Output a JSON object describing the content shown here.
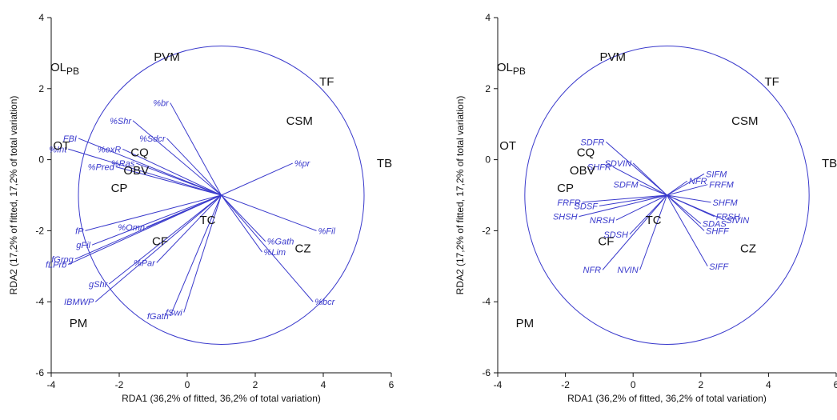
{
  "colors": {
    "vectors": "#3a3acc",
    "sites": "#111111",
    "axes": "#111111"
  },
  "chart_data": [
    {
      "type": "scatter",
      "title": "",
      "xlabel": "RDA1 (36,2% of fitted, 36,2% of total variation)",
      "ylabel": "RDA2 (17,2% of fitted, 17,2% of total variation)",
      "xlim": [
        -4,
        6
      ],
      "ylim": [
        -6,
        4
      ],
      "xticks": [
        "-4",
        "-2",
        "0",
        "2",
        "4",
        "6"
      ],
      "yticks": [
        "-6",
        "-4",
        "-2",
        "0",
        "2",
        "4"
      ],
      "circle": {
        "cx": 1.0,
        "cy": -1.0,
        "r": 4.2
      },
      "vector_origin": [
        1.0,
        -1.0
      ],
      "sites": [
        {
          "label": "OL",
          "sub": "PB",
          "x": -3.6,
          "y": 2.6
        },
        {
          "label": "PVM",
          "x": -0.6,
          "y": 2.9
        },
        {
          "label": "TF",
          "x": 4.1,
          "y": 2.2
        },
        {
          "label": "CSM",
          "x": 3.3,
          "y": 1.1
        },
        {
          "label": "OT",
          "x": -3.7,
          "y": 0.4
        },
        {
          "label": "TB",
          "x": 5.8,
          "y": -0.1
        },
        {
          "label": "CQ",
          "x": -1.4,
          "y": 0.2
        },
        {
          "label": "OBV",
          "x": -1.5,
          "y": -0.3
        },
        {
          "label": "CP",
          "x": -2.0,
          "y": -0.8
        },
        {
          "label": "TC",
          "x": 0.6,
          "y": -1.7
        },
        {
          "label": "CF",
          "x": -0.8,
          "y": -2.3
        },
        {
          "label": "CZ",
          "x": 3.4,
          "y": -2.5
        },
        {
          "label": "PM",
          "x": -3.2,
          "y": -4.6
        }
      ],
      "vectors": [
        {
          "label": "%Shr",
          "x": -1.6,
          "y": 1.1
        },
        {
          "label": "%br",
          "x": -0.5,
          "y": 1.6
        },
        {
          "label": "%Sdcr",
          "x": -0.6,
          "y": 0.6
        },
        {
          "label": "%exR",
          "x": -1.9,
          "y": 0.3
        },
        {
          "label": "FBI",
          "x": -3.2,
          "y": 0.6
        },
        {
          "label": "%Int",
          "x": -3.5,
          "y": 0.3
        },
        {
          "label": "%Ras",
          "x": -1.5,
          "y": -0.1
        },
        {
          "label": "%Pred",
          "x": -2.1,
          "y": -0.2
        },
        {
          "label": "%pr",
          "x": 3.1,
          "y": -0.1
        },
        {
          "label": "fP",
          "x": -3.0,
          "y": -2.0
        },
        {
          "label": "%Omn",
          "x": -1.2,
          "y": -1.9
        },
        {
          "label": "%Fil",
          "x": 3.8,
          "y": -2.0
        },
        {
          "label": "gFil",
          "x": -2.8,
          "y": -2.4
        },
        {
          "label": "%Gath",
          "x": 2.3,
          "y": -2.3
        },
        {
          "label": "%Lim",
          "x": 2.2,
          "y": -2.6
        },
        {
          "label": "fGrpg",
          "x": -3.3,
          "y": -2.8
        },
        {
          "label": "fLPrb",
          "x": -3.5,
          "y": -2.95
        },
        {
          "label": "%Par",
          "x": -0.9,
          "y": -2.9
        },
        {
          "label": "gShr",
          "x": -2.3,
          "y": -3.5
        },
        {
          "label": "IBMWP",
          "x": -2.7,
          "y": -4.0
        },
        {
          "label": "%bcr",
          "x": 3.7,
          "y": -4.0
        },
        {
          "label": "fSwi",
          "x": -0.1,
          "y": -4.3
        },
        {
          "label": "fGath",
          "x": -0.5,
          "y": -4.4
        }
      ]
    },
    {
      "type": "scatter",
      "title": "",
      "xlabel": "RDA1 (36,2% of fitted, 36,2% of total variation)",
      "ylabel": "RDA2 (17,2% of fitted, 17,2% of total variation)",
      "xlim": [
        -4,
        6
      ],
      "ylim": [
        -6,
        4
      ],
      "xticks": [
        "-4",
        "-2",
        "0",
        "2",
        "4",
        "6"
      ],
      "yticks": [
        "-6",
        "-4",
        "-2",
        "0",
        "2",
        "4"
      ],
      "circle": {
        "cx": 1.0,
        "cy": -1.0,
        "r": 4.2
      },
      "vector_origin": [
        1.0,
        -1.0
      ],
      "sites": [
        {
          "label": "OL",
          "sub": "PB",
          "x": -3.6,
          "y": 2.6
        },
        {
          "label": "PVM",
          "x": -0.6,
          "y": 2.9
        },
        {
          "label": "TF",
          "x": 4.1,
          "y": 2.2
        },
        {
          "label": "CSM",
          "x": 3.3,
          "y": 1.1
        },
        {
          "label": "OT",
          "x": -3.7,
          "y": 0.4
        },
        {
          "label": "TB",
          "x": 5.8,
          "y": -0.1
        },
        {
          "label": "CQ",
          "x": -1.4,
          "y": 0.2
        },
        {
          "label": "OBV",
          "x": -1.5,
          "y": -0.3
        },
        {
          "label": "CP",
          "x": -2.0,
          "y": -0.8
        },
        {
          "label": "TC",
          "x": 0.6,
          "y": -1.7
        },
        {
          "label": "CF",
          "x": -0.8,
          "y": -2.3
        },
        {
          "label": "CZ",
          "x": 3.4,
          "y": -2.5
        },
        {
          "label": "PM",
          "x": -3.2,
          "y": -4.6
        }
      ],
      "vectors": [
        {
          "label": "SDFR",
          "x": -0.8,
          "y": 0.5
        },
        {
          "label": "SDVIN",
          "x": 0.0,
          "y": -0.1
        },
        {
          "label": "SHFR",
          "x": -0.6,
          "y": -0.2
        },
        {
          "label": "SIFM",
          "x": 2.1,
          "y": -0.4
        },
        {
          "label": "NFR",
          "x": 1.6,
          "y": -0.6
        },
        {
          "label": "FRFM",
          "x": 2.2,
          "y": -0.7
        },
        {
          "label": "SDFM",
          "x": 0.2,
          "y": -0.7
        },
        {
          "label": "FRFR",
          "x": -1.5,
          "y": -1.2
        },
        {
          "label": "SHFM",
          "x": 2.3,
          "y": -1.2
        },
        {
          "label": "SDSF",
          "x": -1.0,
          "y": -1.3
        },
        {
          "label": "SHSH",
          "x": -1.6,
          "y": -1.6
        },
        {
          "label": "NRSH",
          "x": -0.5,
          "y": -1.7
        },
        {
          "label": "FRSH",
          "x": 2.4,
          "y": -1.6
        },
        {
          "label": "SIVIN",
          "x": 2.7,
          "y": -1.7
        },
        {
          "label": "SDAS",
          "x": 2.0,
          "y": -1.8
        },
        {
          "label": "SHFF",
          "x": 2.1,
          "y": -2.0
        },
        {
          "label": "SDSH",
          "x": -0.1,
          "y": -2.1
        },
        {
          "label": "NFR",
          "x": -0.9,
          "y": -3.1
        },
        {
          "label": "NVIN",
          "x": 0.2,
          "y": -3.1
        },
        {
          "label": "SIFF",
          "x": 2.2,
          "y": -3.0
        }
      ]
    }
  ]
}
